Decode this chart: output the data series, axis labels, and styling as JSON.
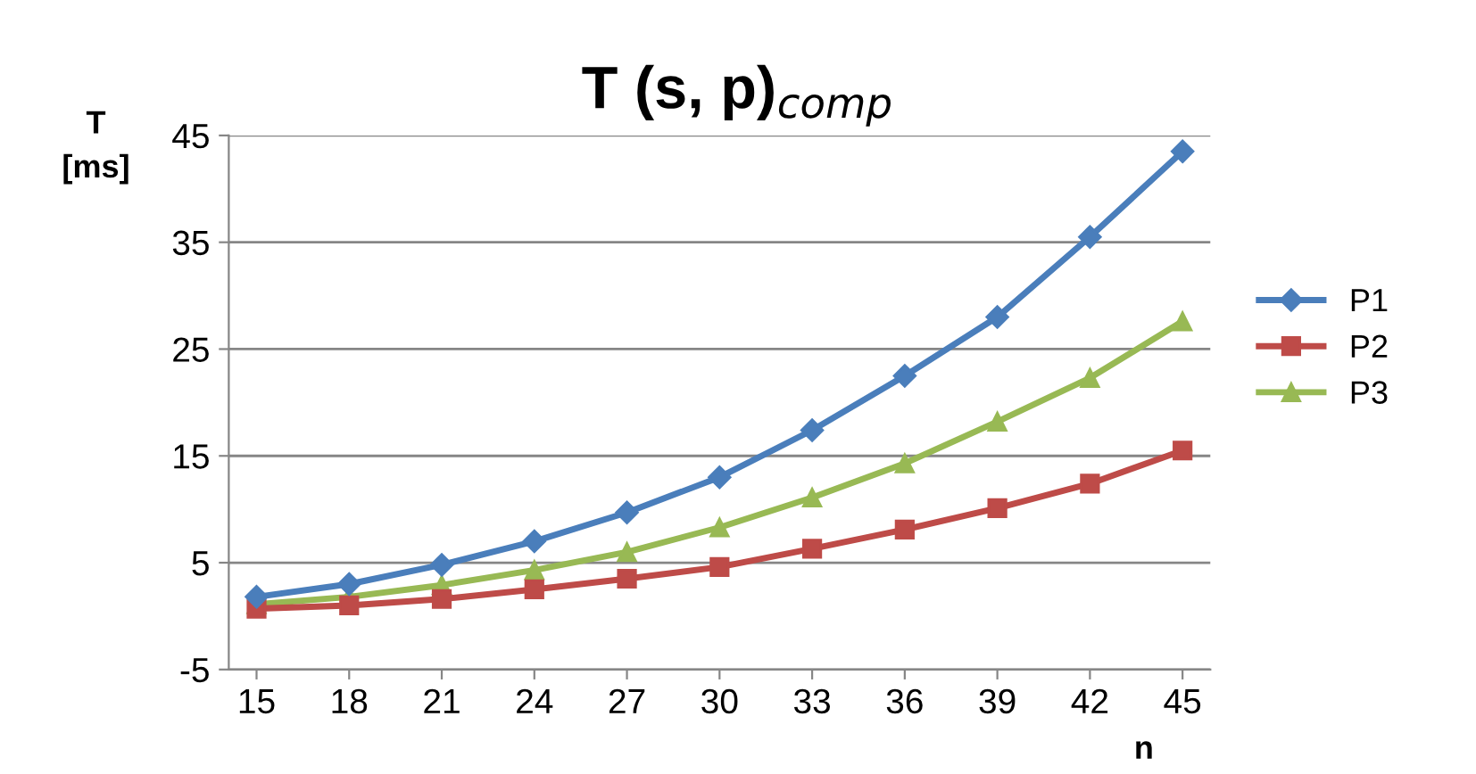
{
  "chart_data": {
    "type": "line",
    "title": "T (s, p)$_{comp}$",
    "ylabel": "T\n[ms]",
    "xlabel": "n",
    "categories": [
      "15",
      "18",
      "21",
      "24",
      "27",
      "30",
      "33",
      "36",
      "39",
      "42",
      "45"
    ],
    "series": [
      {
        "name": "P1",
        "color": "#4a7ebb",
        "marker": "diamond",
        "values": [
          1.8,
          3.0,
          4.8,
          7.0,
          9.7,
          13.0,
          17.4,
          22.5,
          28.0,
          35.5,
          43.5
        ]
      },
      {
        "name": "P2",
        "color": "#be4b48",
        "marker": "square",
        "values": [
          0.7,
          1.0,
          1.6,
          2.5,
          3.5,
          4.6,
          6.3,
          8.1,
          10.1,
          12.4,
          15.5
        ]
      },
      {
        "name": "P3",
        "color": "#98b954",
        "marker": "triangle",
        "values": [
          1.1,
          1.8,
          2.9,
          4.3,
          6.0,
          8.3,
          11.1,
          14.3,
          18.2,
          22.3,
          27.6
        ]
      }
    ],
    "ylim": [
      -5,
      45
    ],
    "yticks": [
      -5,
      5,
      15,
      25,
      35,
      45
    ],
    "grid": "y",
    "legend": "right",
    "line_style": "solid"
  }
}
